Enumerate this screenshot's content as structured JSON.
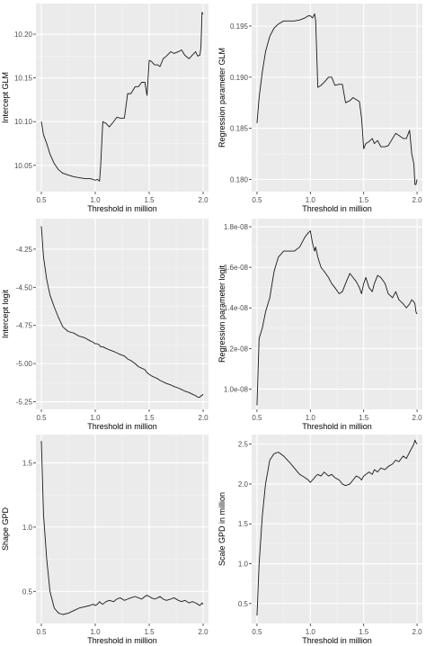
{
  "chart_data": [
    {
      "type": "line",
      "title": "",
      "xlabel": "Threshold in million",
      "ylabel": "Intercept GLM",
      "xlim": [
        0.45,
        2.05
      ],
      "ylim": [
        10.02,
        10.235
      ],
      "xticks": [
        0.5,
        1.0,
        1.5,
        2.0
      ],
      "xtick_labels": [
        "0.5",
        "1.0",
        "1.5",
        "2.0"
      ],
      "yticks": [
        10.05,
        10.1,
        10.15,
        10.2
      ],
      "ytick_labels": [
        "10.05",
        "10.10",
        "10.15",
        "10.20"
      ],
      "grid": true,
      "series": [
        {
          "x": [
            0.5,
            0.52,
            0.55,
            0.58,
            0.62,
            0.66,
            0.7,
            0.75,
            0.8,
            0.85,
            0.9,
            0.95,
            0.98,
            1.0,
            1.02,
            1.04,
            1.05,
            1.07,
            1.1,
            1.13,
            1.17,
            1.2,
            1.23,
            1.27,
            1.3,
            1.33,
            1.37,
            1.4,
            1.43,
            1.46,
            1.48,
            1.5,
            1.52,
            1.55,
            1.58,
            1.6,
            1.63,
            1.66,
            1.7,
            1.73,
            1.77,
            1.8,
            1.83,
            1.87,
            1.9,
            1.93,
            1.95,
            1.97,
            1.98,
            1.99,
            2.0
          ],
          "y": [
            10.1,
            10.085,
            10.075,
            10.063,
            10.052,
            10.045,
            10.041,
            10.039,
            10.037,
            10.036,
            10.035,
            10.035,
            10.034,
            10.033,
            10.034,
            10.032,
            10.05,
            10.1,
            10.098,
            10.094,
            10.1,
            10.105,
            10.104,
            10.104,
            10.132,
            10.132,
            10.14,
            10.14,
            10.145,
            10.145,
            10.13,
            10.17,
            10.169,
            10.165,
            10.165,
            10.163,
            10.172,
            10.175,
            10.18,
            10.178,
            10.18,
            10.182,
            10.176,
            10.172,
            10.176,
            10.18,
            10.175,
            10.176,
            10.185,
            10.225,
            10.223
          ]
        }
      ]
    },
    {
      "type": "line",
      "title": "",
      "xlabel": "Threshold in million",
      "ylabel": "Regression parameter GLM",
      "xlim": [
        0.45,
        2.05
      ],
      "ylim": [
        0.1788,
        0.1972
      ],
      "xticks": [
        0.5,
        1.0,
        1.5,
        2.0
      ],
      "xtick_labels": [
        "0.5",
        "1.0",
        "1.5",
        "2.0"
      ],
      "yticks": [
        0.18,
        0.185,
        0.19,
        0.195
      ],
      "ytick_labels": [
        "0.180",
        "0.185",
        "0.190",
        "0.195"
      ],
      "grid": true,
      "series": [
        {
          "x": [
            0.5,
            0.52,
            0.55,
            0.58,
            0.62,
            0.66,
            0.7,
            0.75,
            0.8,
            0.85,
            0.9,
            0.95,
            0.98,
            1.0,
            1.02,
            1.04,
            1.05,
            1.07,
            1.1,
            1.13,
            1.17,
            1.2,
            1.23,
            1.27,
            1.3,
            1.33,
            1.37,
            1.4,
            1.43,
            1.46,
            1.48,
            1.5,
            1.52,
            1.55,
            1.58,
            1.6,
            1.63,
            1.66,
            1.7,
            1.73,
            1.77,
            1.8,
            1.83,
            1.87,
            1.9,
            1.93,
            1.95,
            1.97,
            1.98,
            1.99,
            2.0
          ],
          "y": [
            0.1855,
            0.188,
            0.1905,
            0.1925,
            0.194,
            0.1948,
            0.1952,
            0.1955,
            0.1955,
            0.1955,
            0.1956,
            0.1958,
            0.196,
            0.196,
            0.1958,
            0.1962,
            0.1955,
            0.189,
            0.1892,
            0.1895,
            0.19,
            0.19,
            0.1892,
            0.1893,
            0.1893,
            0.1875,
            0.1877,
            0.188,
            0.1878,
            0.1876,
            0.186,
            0.183,
            0.1835,
            0.1837,
            0.184,
            0.1835,
            0.1838,
            0.1832,
            0.1832,
            0.1833,
            0.184,
            0.1845,
            0.1843,
            0.184,
            0.184,
            0.1848,
            0.1825,
            0.1815,
            0.1795,
            0.1795,
            0.18
          ]
        }
      ]
    },
    {
      "type": "line",
      "title": "",
      "xlabel": "Threshold in million",
      "ylabel": "Intercept logit",
      "xlim": [
        0.45,
        2.05
      ],
      "ylim": [
        -5.3,
        -4.05
      ],
      "xticks": [
        0.5,
        1.0,
        1.5,
        2.0
      ],
      "xtick_labels": [
        "0.5",
        "1.0",
        "1.5",
        "2.0"
      ],
      "yticks": [
        -5.25,
        -5.0,
        -4.75,
        -4.5,
        -4.25
      ],
      "ytick_labels": [
        "-5.25",
        "-5.00",
        "-4.75",
        "-4.50",
        "-4.25"
      ],
      "grid": true,
      "series": [
        {
          "x": [
            0.5,
            0.52,
            0.55,
            0.58,
            0.62,
            0.66,
            0.7,
            0.75,
            0.8,
            0.85,
            0.9,
            0.95,
            0.98,
            1.0,
            1.02,
            1.04,
            1.05,
            1.07,
            1.1,
            1.13,
            1.17,
            1.2,
            1.23,
            1.27,
            1.3,
            1.33,
            1.37,
            1.4,
            1.43,
            1.46,
            1.48,
            1.5,
            1.52,
            1.55,
            1.58,
            1.6,
            1.63,
            1.66,
            1.7,
            1.73,
            1.77,
            1.8,
            1.83,
            1.87,
            1.9,
            1.93,
            1.95,
            1.97,
            1.98,
            1.99,
            2.0
          ],
          "y": [
            -4.1,
            -4.3,
            -4.45,
            -4.55,
            -4.63,
            -4.7,
            -4.76,
            -4.79,
            -4.8,
            -4.82,
            -4.83,
            -4.85,
            -4.86,
            -4.87,
            -4.87,
            -4.88,
            -4.89,
            -4.89,
            -4.9,
            -4.91,
            -4.92,
            -4.93,
            -4.94,
            -4.95,
            -4.97,
            -4.98,
            -5.0,
            -5.02,
            -5.03,
            -5.04,
            -5.06,
            -5.07,
            -5.08,
            -5.09,
            -5.1,
            -5.11,
            -5.12,
            -5.13,
            -5.14,
            -5.15,
            -5.16,
            -5.17,
            -5.18,
            -5.19,
            -5.2,
            -5.21,
            -5.22,
            -5.22,
            -5.21,
            -5.21,
            -5.2
          ]
        }
      ]
    },
    {
      "type": "line",
      "title": "",
      "xlabel": "Threshold in million",
      "ylabel": "Regression parameter logit",
      "xlim": [
        0.45,
        2.05
      ],
      "ylim": [
        9e-09,
        1.84e-08
      ],
      "xticks": [
        0.5,
        1.0,
        1.5,
        2.0
      ],
      "xtick_labels": [
        "0.5",
        "1.0",
        "1.5",
        "2.0"
      ],
      "yticks": [
        1e-08,
        1.2e-08,
        1.4e-08,
        1.6e-08,
        1.8e-08
      ],
      "ytick_labels": [
        "1.0e-08",
        "1.2e-08",
        "1.4e-08",
        "1.6e-08",
        "1.8e-08"
      ],
      "grid": true,
      "series": [
        {
          "x": [
            0.5,
            0.52,
            0.55,
            0.58,
            0.62,
            0.66,
            0.7,
            0.75,
            0.8,
            0.85,
            0.9,
            0.95,
            0.98,
            1.0,
            1.02,
            1.04,
            1.05,
            1.07,
            1.1,
            1.13,
            1.17,
            1.2,
            1.23,
            1.27,
            1.3,
            1.33,
            1.37,
            1.4,
            1.43,
            1.46,
            1.48,
            1.5,
            1.52,
            1.55,
            1.58,
            1.6,
            1.63,
            1.66,
            1.7,
            1.73,
            1.77,
            1.8,
            1.83,
            1.87,
            1.9,
            1.93,
            1.95,
            1.97,
            1.98,
            1.99,
            2.0
          ],
          "y": [
            9.2e-09,
            1.25e-08,
            1.3e-08,
            1.38e-08,
            1.45e-08,
            1.58e-08,
            1.65e-08,
            1.68e-08,
            1.68e-08,
            1.68e-08,
            1.7e-08,
            1.75e-08,
            1.77e-08,
            1.78e-08,
            1.72e-08,
            1.68e-08,
            1.7e-08,
            1.65e-08,
            1.6e-08,
            1.58e-08,
            1.55e-08,
            1.52e-08,
            1.5e-08,
            1.47e-08,
            1.48e-08,
            1.52e-08,
            1.57e-08,
            1.55e-08,
            1.53e-08,
            1.5e-08,
            1.47e-08,
            1.52e-08,
            1.55e-08,
            1.5e-08,
            1.48e-08,
            1.52e-08,
            1.56e-08,
            1.55e-08,
            1.52e-08,
            1.47e-08,
            1.45e-08,
            1.48e-08,
            1.44e-08,
            1.42e-08,
            1.4e-08,
            1.42e-08,
            1.44e-08,
            1.43e-08,
            1.42e-08,
            1.38e-08,
            1.37e-08
          ]
        }
      ]
    },
    {
      "type": "line",
      "title": "",
      "xlabel": "Threshold in million",
      "ylabel": "Shape GPD",
      "xlim": [
        0.45,
        2.05
      ],
      "ylim": [
        0.25,
        1.72
      ],
      "xticks": [
        0.5,
        1.0,
        1.5,
        2.0
      ],
      "xtick_labels": [
        "0.5",
        "1.0",
        "1.5",
        "2.0"
      ],
      "yticks": [
        0.5,
        1.0,
        1.5
      ],
      "ytick_labels": [
        "0.5",
        "1.0",
        "1.5"
      ],
      "grid": true,
      "series": [
        {
          "x": [
            0.5,
            0.52,
            0.55,
            0.58,
            0.62,
            0.66,
            0.7,
            0.75,
            0.8,
            0.85,
            0.9,
            0.95,
            0.98,
            1.0,
            1.02,
            1.04,
            1.05,
            1.07,
            1.1,
            1.13,
            1.17,
            1.2,
            1.23,
            1.27,
            1.3,
            1.33,
            1.37,
            1.4,
            1.43,
            1.46,
            1.48,
            1.5,
            1.52,
            1.55,
            1.58,
            1.6,
            1.63,
            1.66,
            1.7,
            1.73,
            1.77,
            1.8,
            1.83,
            1.87,
            1.9,
            1.93,
            1.95,
            1.97,
            1.98,
            1.99,
            2.0
          ],
          "y": [
            1.67,
            1.1,
            0.75,
            0.5,
            0.37,
            0.33,
            0.32,
            0.33,
            0.35,
            0.37,
            0.38,
            0.39,
            0.4,
            0.39,
            0.4,
            0.42,
            0.41,
            0.4,
            0.42,
            0.43,
            0.42,
            0.44,
            0.45,
            0.43,
            0.44,
            0.45,
            0.46,
            0.45,
            0.44,
            0.46,
            0.47,
            0.46,
            0.45,
            0.44,
            0.45,
            0.46,
            0.44,
            0.43,
            0.44,
            0.45,
            0.43,
            0.42,
            0.43,
            0.41,
            0.42,
            0.41,
            0.4,
            0.39,
            0.4,
            0.41,
            0.4
          ]
        }
      ]
    },
    {
      "type": "line",
      "title": "",
      "xlabel": "Threshold in million",
      "ylabel": "Scale GPD in million",
      "xlim": [
        0.45,
        2.05
      ],
      "ylim": [
        0.25,
        2.62
      ],
      "xticks": [
        0.5,
        1.0,
        1.5,
        2.0
      ],
      "xtick_labels": [
        "0.5",
        "1.0",
        "1.5",
        "2.0"
      ],
      "yticks": [
        0.5,
        1.0,
        1.5,
        2.0,
        2.5
      ],
      "ytick_labels": [
        "0.5",
        "1.0",
        "1.5",
        "2.0",
        "2.5"
      ],
      "grid": true,
      "series": [
        {
          "x": [
            0.5,
            0.52,
            0.55,
            0.58,
            0.62,
            0.66,
            0.7,
            0.75,
            0.8,
            0.85,
            0.9,
            0.95,
            0.98,
            1.0,
            1.02,
            1.04,
            1.05,
            1.07,
            1.1,
            1.13,
            1.17,
            1.2,
            1.23,
            1.27,
            1.3,
            1.33,
            1.37,
            1.4,
            1.43,
            1.46,
            1.48,
            1.5,
            1.52,
            1.55,
            1.58,
            1.6,
            1.63,
            1.66,
            1.7,
            1.73,
            1.77,
            1.8,
            1.83,
            1.87,
            1.9,
            1.93,
            1.95,
            1.97,
            1.98,
            1.99,
            2.0
          ],
          "y": [
            0.35,
            1.0,
            1.6,
            2.0,
            2.3,
            2.38,
            2.4,
            2.35,
            2.28,
            2.2,
            2.12,
            2.08,
            2.05,
            2.02,
            2.05,
            2.08,
            2.1,
            2.12,
            2.1,
            2.15,
            2.1,
            2.12,
            2.08,
            2.05,
            2.0,
            1.98,
            2.0,
            2.05,
            2.1,
            2.08,
            2.05,
            2.1,
            2.12,
            2.15,
            2.12,
            2.18,
            2.15,
            2.2,
            2.18,
            2.22,
            2.25,
            2.3,
            2.28,
            2.35,
            2.32,
            2.4,
            2.45,
            2.5,
            2.55,
            2.52,
            2.5
          ]
        }
      ]
    }
  ]
}
